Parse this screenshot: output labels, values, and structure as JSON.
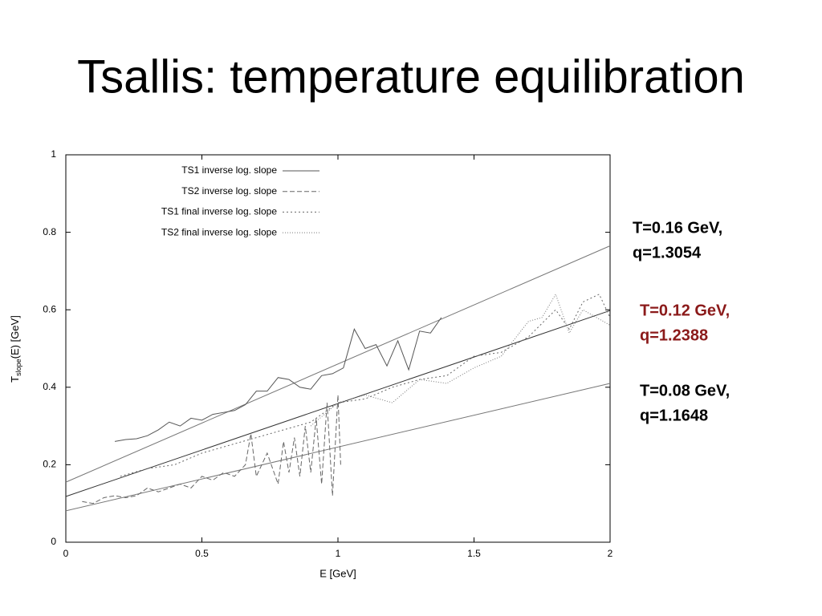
{
  "chart_data": {
    "type": "line",
    "title": "Tsallis: temperature equilibration",
    "xlabel": "E [GeV]",
    "ylabel": {
      "main": "T",
      "sub": "slope",
      "rest": "(E) [GeV]"
    },
    "xlim": [
      0,
      2
    ],
    "ylim": [
      0,
      1
    ],
    "xticks": [
      0,
      0.5,
      1,
      1.5,
      2
    ],
    "yticks": [
      0,
      0.2,
      0.4,
      0.6,
      0.8,
      1
    ],
    "legend": "top-left",
    "series": [
      {
        "name": "TS1 inverse log. slope",
        "color": "#555555",
        "dash": "solid",
        "x": [
          0.18,
          0.22,
          0.26,
          0.3,
          0.34,
          0.38,
          0.42,
          0.46,
          0.5,
          0.54,
          0.58,
          0.62,
          0.66,
          0.7,
          0.74,
          0.78,
          0.82,
          0.86,
          0.9,
          0.94,
          0.98,
          1.02,
          1.06,
          1.1,
          1.14,
          1.18,
          1.22,
          1.26,
          1.3,
          1.34,
          1.38
        ],
        "values": [
          0.26,
          0.265,
          0.267,
          0.275,
          0.29,
          0.31,
          0.3,
          0.32,
          0.315,
          0.33,
          0.335,
          0.34,
          0.355,
          0.39,
          0.39,
          0.425,
          0.42,
          0.4,
          0.395,
          0.43,
          0.435,
          0.45,
          0.55,
          0.5,
          0.51,
          0.455,
          0.52,
          0.445,
          0.545,
          0.54,
          0.58
        ]
      },
      {
        "name": "TS2 inverse log. slope",
        "color": "#666666",
        "dash": "dashed",
        "x": [
          0.06,
          0.1,
          0.14,
          0.18,
          0.22,
          0.26,
          0.3,
          0.34,
          0.38,
          0.42,
          0.46,
          0.5,
          0.54,
          0.58,
          0.62,
          0.66,
          0.68,
          0.7,
          0.74,
          0.78,
          0.8,
          0.82,
          0.84,
          0.86,
          0.88,
          0.9,
          0.92,
          0.94,
          0.96,
          0.98,
          1.0,
          1.01
        ],
        "values": [
          0.105,
          0.1,
          0.115,
          0.12,
          0.115,
          0.12,
          0.14,
          0.13,
          0.14,
          0.15,
          0.14,
          0.17,
          0.16,
          0.18,
          0.17,
          0.2,
          0.28,
          0.17,
          0.23,
          0.15,
          0.26,
          0.18,
          0.27,
          0.17,
          0.3,
          0.18,
          0.32,
          0.15,
          0.36,
          0.12,
          0.38,
          0.2
        ]
      },
      {
        "name": "TS1 final inverse log. slope",
        "color": "#666666",
        "dash": "dotted",
        "x": [
          0.2,
          0.3,
          0.4,
          0.5,
          0.6,
          0.7,
          0.8,
          0.9,
          1.0,
          1.1,
          1.2,
          1.3,
          1.4,
          1.5,
          1.6,
          1.7,
          1.8,
          1.85,
          1.9,
          1.96,
          2.0
        ],
        "values": [
          0.17,
          0.19,
          0.2,
          0.23,
          0.25,
          0.27,
          0.29,
          0.31,
          0.36,
          0.37,
          0.4,
          0.42,
          0.43,
          0.48,
          0.49,
          0.53,
          0.6,
          0.55,
          0.62,
          0.64,
          0.58
        ]
      },
      {
        "name": "TS2 final inverse log. slope",
        "color": "#777777",
        "dash": "fine-dotted",
        "x": [
          0.9,
          1.0,
          1.1,
          1.2,
          1.3,
          1.4,
          1.5,
          1.6,
          1.7,
          1.75,
          1.8,
          1.85,
          1.9,
          2.0
        ],
        "values": [
          0.3,
          0.36,
          0.38,
          0.36,
          0.42,
          0.41,
          0.45,
          0.48,
          0.57,
          0.58,
          0.64,
          0.54,
          0.6,
          0.56
        ]
      }
    ],
    "fit_lines": [
      {
        "label_lines": [
          "T=0.16 GeV,",
          "q=1.3054"
        ],
        "label_color": "#000000",
        "color": "#777777",
        "x": [
          0,
          2
        ],
        "values": [
          0.155,
          0.765
        ]
      },
      {
        "label_lines": [
          "T=0.12 GeV,",
          "q=1.2388"
        ],
        "label_color": "#8b1a1a",
        "color": "#333333",
        "x": [
          0,
          2
        ],
        "values": [
          0.118,
          0.598
        ]
      },
      {
        "label_lines": [
          "T=0.08 GeV,",
          "q=1.1648"
        ],
        "label_color": "#000000",
        "color": "#777777",
        "x": [
          0,
          2
        ],
        "values": [
          0.081,
          0.41
        ]
      }
    ]
  }
}
